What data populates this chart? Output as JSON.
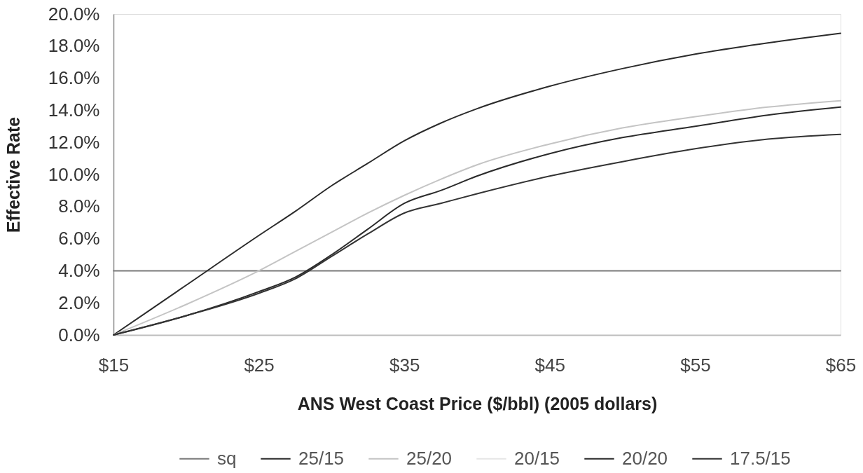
{
  "chart_data": {
    "type": "line",
    "xlabel": "ANS West Coast Price ($/bbl) (2005 dollars)",
    "ylabel": "Effective Rate",
    "x": [
      15,
      20,
      25,
      27.5,
      30,
      32.5,
      35,
      37.5,
      40,
      45,
      50,
      55,
      60,
      65
    ],
    "xlim": [
      15,
      65
    ],
    "xticks": [
      {
        "value": 15,
        "label": "$15"
      },
      {
        "value": 25,
        "label": "$25"
      },
      {
        "value": 35,
        "label": "$35"
      },
      {
        "value": 45,
        "label": "$45"
      },
      {
        "value": 55,
        "label": "$55"
      },
      {
        "value": 65,
        "label": "$65"
      }
    ],
    "ylim": [
      0,
      20
    ],
    "yticks": [
      {
        "value": 0,
        "label": "0.0%"
      },
      {
        "value": 2,
        "label": "2.0%"
      },
      {
        "value": 4,
        "label": "4.0%"
      },
      {
        "value": 6,
        "label": "6.0%"
      },
      {
        "value": 8,
        "label": "8.0%"
      },
      {
        "value": 10,
        "label": "10.0%"
      },
      {
        "value": 12,
        "label": "12.0%"
      },
      {
        "value": 14,
        "label": "14.0%"
      },
      {
        "value": 16,
        "label": "16.0%"
      },
      {
        "value": 18,
        "label": "18.0%"
      },
      {
        "value": 20,
        "label": "20.0%"
      }
    ],
    "series": [
      {
        "name": "sq",
        "color": "#7a7a7a",
        "values": [
          4.0,
          4.0,
          4.0,
          4.0,
          4.0,
          4.0,
          4.0,
          4.0,
          4.0,
          4.0,
          4.0,
          4.0,
          4.0,
          4.0
        ]
      },
      {
        "name": "25/15",
        "color": "#2b2b2b",
        "values": [
          0,
          3.1,
          6.2,
          7.7,
          9.3,
          10.7,
          12.1,
          13.2,
          14.1,
          15.5,
          16.6,
          17.5,
          18.2,
          18.8
        ]
      },
      {
        "name": "25/20",
        "color": "#c4c4c4",
        "values": [
          0,
          1.9,
          4.0,
          5.2,
          6.4,
          7.6,
          8.7,
          9.7,
          10.6,
          11.9,
          12.9,
          13.6,
          14.2,
          14.6
        ]
      },
      {
        "name": "20/15",
        "color": "#e6e6e6",
        "values": [
          null,
          null,
          null,
          null,
          null,
          null,
          null,
          null,
          null,
          null,
          null,
          null,
          null,
          null
        ]
      },
      {
        "name": "20/20",
        "color": "#2b2b2b",
        "values": [
          0,
          1.2,
          2.7,
          3.6,
          5.0,
          6.6,
          8.2,
          9.0,
          9.9,
          11.3,
          12.3,
          13.0,
          13.7,
          14.2
        ]
      },
      {
        "name": "17.5/15",
        "color": "#333333",
        "values": [
          0,
          1.2,
          2.6,
          3.5,
          4.9,
          6.3,
          7.6,
          8.2,
          8.8,
          9.9,
          10.8,
          11.6,
          12.2,
          12.5
        ]
      }
    ],
    "legend": "bottom",
    "grid": false,
    "marker": "none",
    "line_style": "solid"
  }
}
